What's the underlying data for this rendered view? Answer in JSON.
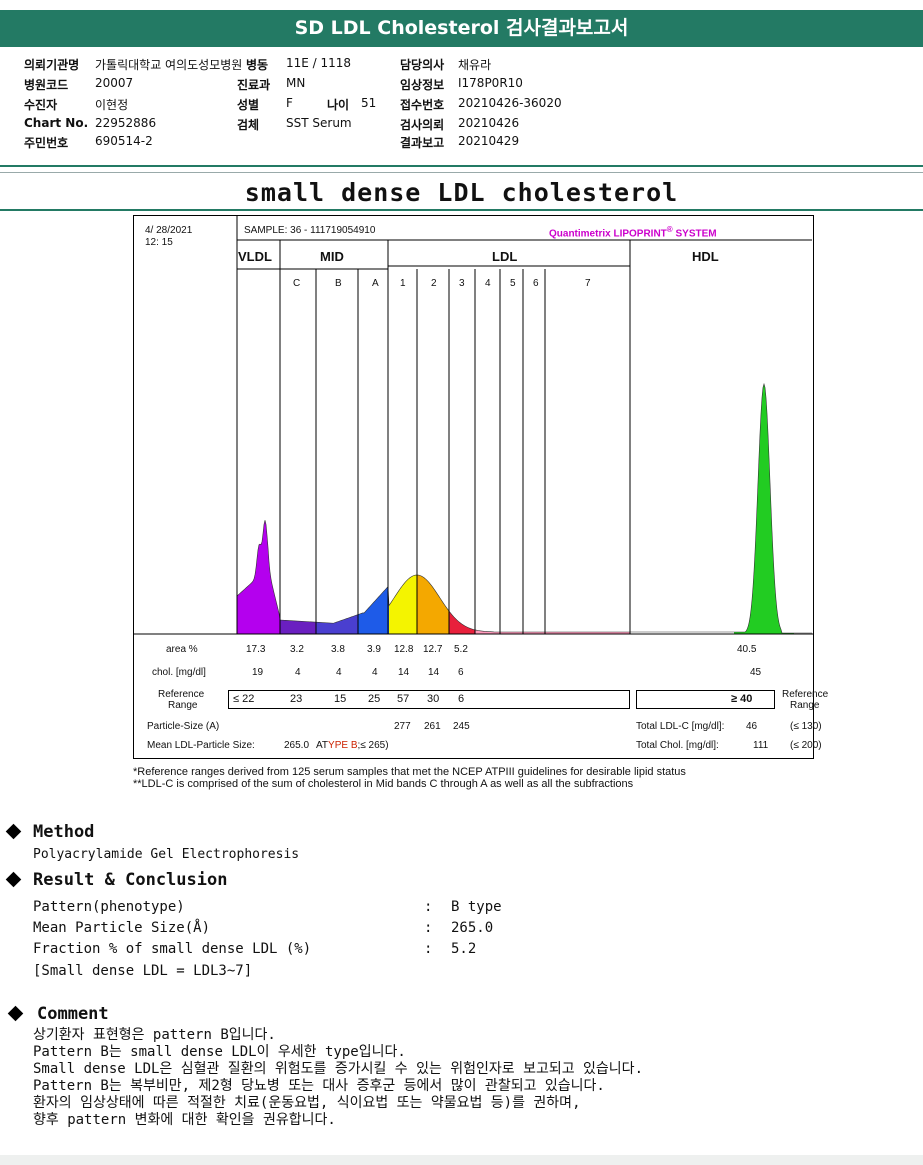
{
  "report_title": "SD LDL Cholesterol 검사결과보고서",
  "info": {
    "institution_label": "의뢰기관명",
    "institution_value": "가톨릭대학교 여의도성모병원",
    "ward_label": "병동",
    "ward_value": "11E / 1118",
    "doctor_label": "담당의사",
    "doctor_value": "채유라",
    "hospital_code_label": "병원코드",
    "hospital_code_value": "20007",
    "dept_label": "진료과",
    "dept_value": "MN",
    "clinical_label": "임상정보",
    "clinical_value": "I178P0R10",
    "patient_label": "수진자",
    "patient_value": "이현정",
    "sex_label": "성별",
    "sex_value": "F",
    "age_label": "나이",
    "age_value": "51",
    "receipt_label": "접수번호",
    "receipt_value": "20210426-36020",
    "chart_label": "Chart No.",
    "chart_value": "22952886",
    "specimen_label": "검체",
    "specimen_value": "SST Serum",
    "request_label": "검사의뢰",
    "request_value": "20210426",
    "rrn_label": "주민번호",
    "rrn_value": "690514-2",
    "report_label": "결과보고",
    "report_value": "20210429"
  },
  "subtitle": "small dense LDL cholesterol",
  "chart_data": {
    "type": "area",
    "date": "4/ 28/2021",
    "time": "12: 15",
    "sample": "SAMPLE:   36 - 111719054910",
    "brand": "Quantimetrix LIPOPRINT",
    "brand_mark": "®",
    "brand_suffix": " SYSTEM",
    "groups": [
      "VLDL",
      "MID",
      "LDL",
      "HDL"
    ],
    "bands": [
      "C",
      "B",
      "A",
      "1",
      "2",
      "3",
      "4",
      "5",
      "6",
      "7"
    ],
    "band_colors": {
      "VLDL": "#b400ee",
      "C": "#6a1fc0",
      "B": "#4a3fd0",
      "A": "#1e5be8",
      "1": "#f4f400",
      "2": "#f4a800",
      "3": "#e8203c",
      "rest": "#ff99bb",
      "HDL": "#22cc22"
    },
    "area_label": "area %",
    "area_values": [
      "17.3",
      "3.2",
      "3.8",
      "3.9",
      "12.8",
      "12.7",
      "5.2",
      "40.5"
    ],
    "chol_label": "chol. [mg/dl]",
    "chol_values": [
      "19",
      "4",
      "4",
      "4",
      "14",
      "14",
      "6",
      "45"
    ],
    "ref_label_1": "Reference",
    "ref_label_2": "Range",
    "ref_values": [
      "≤ 22",
      "23",
      "15",
      "25",
      "57",
      "30",
      "6"
    ],
    "ref_hdl": "≥ 40",
    "particle_label": "Particle-Size (A)",
    "particle_values": [
      "277",
      "261",
      "245"
    ],
    "mean_label": "Mean LDL-Particle Size:",
    "mean_value": "265.0",
    "mean_type_a": "AT",
    "mean_type_b": "YPE B",
    "mean_ref": ";≤ 265)",
    "total_ldl_label": "Total LDL-C [mg/dl]:",
    "total_ldl_value": "46",
    "total_ldl_ref": "(≤ 130)",
    "total_chol_label": "Total Chol. [mg/dl]:",
    "total_chol_value": "111",
    "total_chol_ref": "(≤ 200)"
  },
  "footnote_1": "*Reference ranges derived from 125 serum samples that met the NCEP ATPIII guidelines for desirable lipid status",
  "footnote_2": "**LDL-C is comprised of the sum of cholesterol in Mid bands C through A as well as all the subfractions",
  "method": {
    "heading": "Method",
    "text": "Polyacrylamide Gel Electrophoresis"
  },
  "result": {
    "heading": "Result & Conclusion",
    "rows": [
      {
        "label": "Pattern(phenotype)",
        "sep": ":",
        "value": "B type"
      },
      {
        "label": "Mean Particle Size(Å)",
        "sep": ":",
        "value": "265.0"
      },
      {
        "label": "Fraction % of small dense LDL (%)",
        "sep": ":",
        "value": "5.2"
      }
    ],
    "note": "[Small dense LDL = LDL3~7]"
  },
  "comment": {
    "heading": "Comment",
    "lines": [
      "상기환자 표현형은 pattern B입니다.",
      "Pattern B는 small dense LDL이 우세한 type입니다.",
      "Small dense LDL은 심혈관 질환의 위험도를 증가시킬 수 있는 위험인자로 보고되고 있습니다.",
      "Pattern B는 복부비만, 제2형 당뇨병 또는 대사 증후군 등에서 많이 관찰되고 있습니다.",
      "환자의 임상상태에 따른 적절한 치료(운동요법, 식이요법 또는 약물요법 등)를 권하며,",
      "향후 pattern 변화에 대한 확인을 권유합니다."
    ]
  }
}
